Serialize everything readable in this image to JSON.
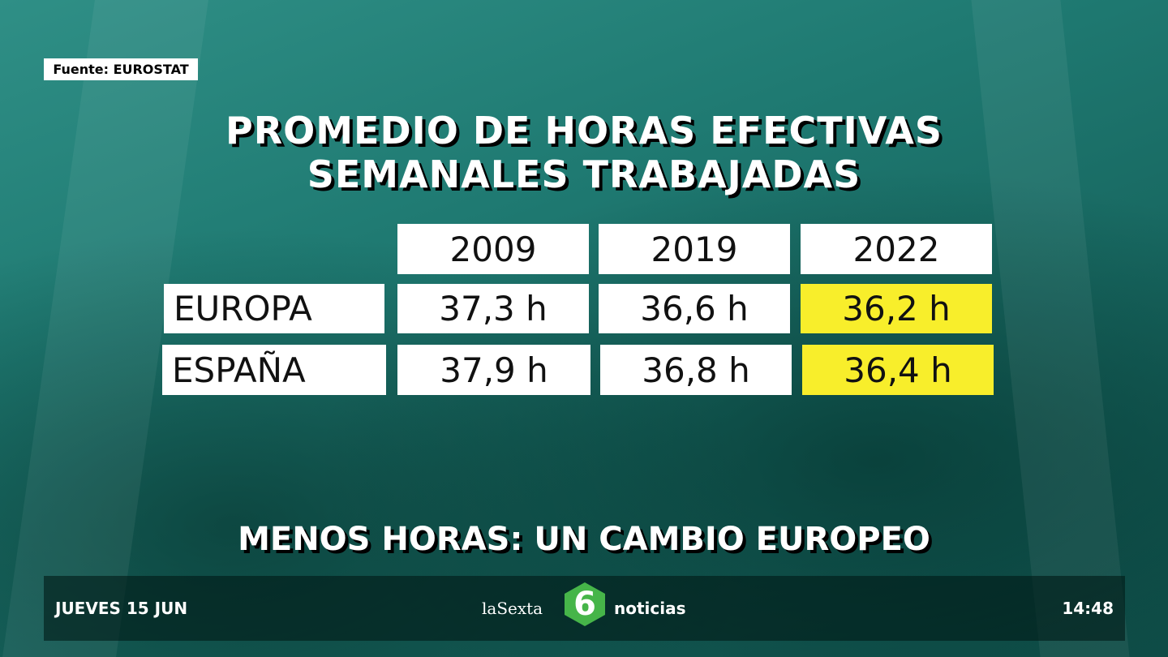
{
  "source": "Fuente: EUROSTAT",
  "title": [
    "PROMEDIO DE HORAS EFECTIVAS",
    "SEMANALES TRABAJADAS"
  ],
  "table": {
    "header": [
      "2009",
      "2019",
      "2022"
    ],
    "rows": [
      {
        "label": "EUROPA",
        "cells": [
          "37,3 h",
          "36,6 h",
          "36,2 h"
        ]
      },
      {
        "label": "ESPAÑA",
        "cells": [
          "37,9 h",
          "36,8 h",
          "36,4 h"
        ]
      }
    ]
  },
  "headline": "MENOS HORAS: UN CAMBIO EUROPEO",
  "footer": {
    "date": "JUEVES 15 JUN",
    "logo": {
      "left": "laSexta",
      "mark": "6",
      "right": "noticias"
    },
    "time": "14:48"
  }
}
